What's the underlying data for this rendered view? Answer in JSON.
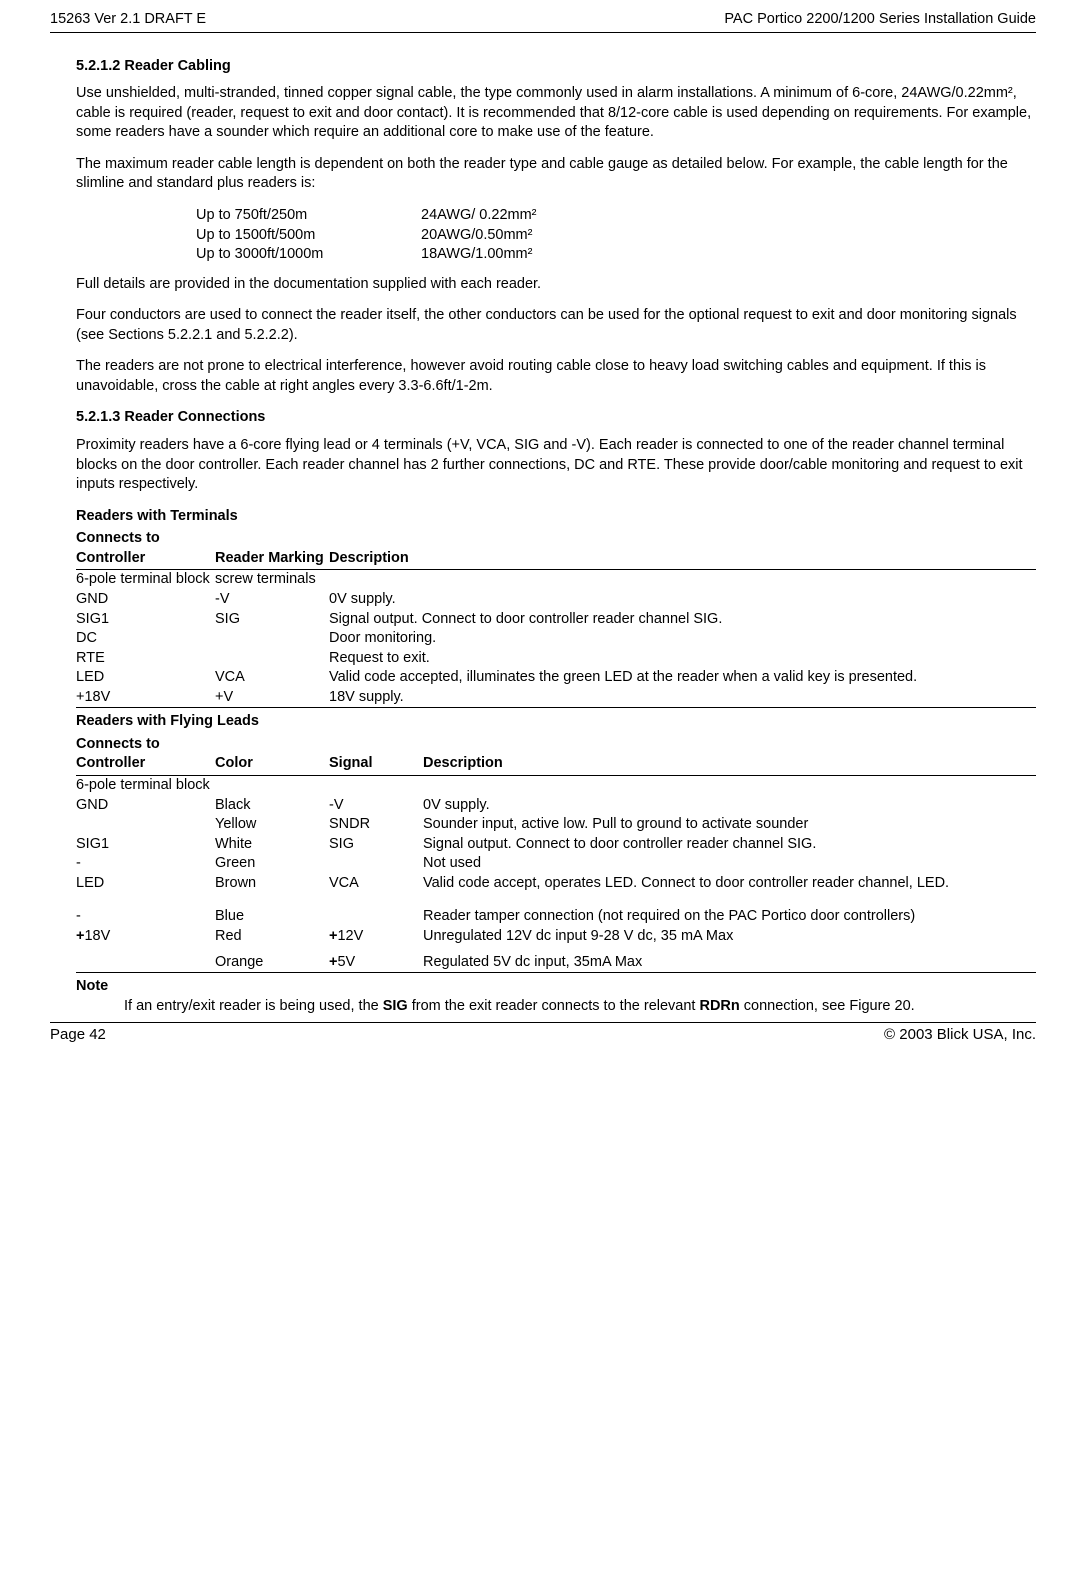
{
  "header": {
    "left": "15263 Ver 2.1 DRAFT E",
    "right": "PAC Portico 2200/1200 Series Installation Guide"
  },
  "s5212": {
    "heading": "5.2.1.2 Reader Cabling",
    "p1": "Use unshielded, multi-stranded, tinned copper signal cable, the type commonly used in alarm installations.  A minimum of 6-core, 24AWG/0.22mm², cable is required (reader, request to exit and door contact).  It is recommended that 8/12-core cable is used depending on requirements.  For example, some readers have a sounder which require an additional core to make use of the feature.",
    "p2": "The maximum reader cable length is dependent on both the reader type and cable gauge as detailed below.  For example, the cable length for the slimline and standard plus readers is:",
    "gauge": [
      {
        "dist": "Up to 750ft/250m",
        "spec": "24AWG/ 0.22mm²"
      },
      {
        "dist": "Up to 1500ft/500m",
        "spec": "20AWG/0.50mm²"
      },
      {
        "dist": "Up to 3000ft/1000m",
        "spec": "18AWG/1.00mm²"
      }
    ],
    "p3": "Full details are provided in the documentation supplied with each reader.",
    "p4": "Four conductors are used to connect the reader itself, the other conductors can be used for the optional request to exit and door monitoring signals (see Sections 5.2.2.1 and 5.2.2.2).",
    "p5": "The readers are not prone to electrical interference, however avoid routing cable close to heavy load switching cables and equipment. If this is unavoidable, cross the cable at right angles every 3.3-6.6ft/1-2m."
  },
  "s5213": {
    "heading": "5.2.1.3 Reader Connections",
    "p1": "Proximity readers have a 6-core flying lead or 4 terminals (+V, VCA, SIG and -V). Each reader is connected to one of the reader channel terminal blocks on the door controller. Each reader channel has 2 further connections, DC and RTE. These provide door/cable monitoring and request to exit inputs respectively.",
    "terminals": {
      "title": "Readers with Terminals",
      "head": [
        "Connects to Controller",
        "Reader Marking",
        "Description"
      ],
      "rows": [
        {
          "c": "6-pole terminal block",
          "m": "screw terminals",
          "d": ""
        },
        {
          "c": "GND",
          "m": "-V",
          "d": "0V supply."
        },
        {
          "c": "SIG1",
          "m": "SIG",
          "d": "Signal output.  Connect to door controller reader channel SIG."
        },
        {
          "c": "DC",
          "m": "",
          "d": "Door monitoring."
        },
        {
          "c": "RTE",
          "m": "",
          "d": "Request to exit."
        },
        {
          "c": "LED",
          "m": "VCA",
          "d": "Valid code accepted, illuminates the green LED at the reader when a valid key is presented."
        },
        {
          "c": "+18V",
          "m": "+V",
          "d": "18V supply."
        }
      ]
    },
    "flying": {
      "title": "Readers with Flying Leads",
      "head": [
        "Connects to Controller",
        "Color",
        "Signal",
        "Description"
      ],
      "rows": [
        {
          "c": "6-pole terminal block",
          "col": "",
          "s": "",
          "d": ""
        },
        {
          "c": "GND",
          "col": "Black",
          "s": "-V",
          "d": "0V supply."
        },
        {
          "c": "",
          "col": "Yellow",
          "s": "SNDR",
          "d": "Sounder input, active low.  Pull to ground to activate sounder"
        },
        {
          "c": "SIG1",
          "col": "White",
          "s": "SIG",
          "d": "Signal output.  Connect to door controller reader channel SIG."
        },
        {
          "c": "-",
          "col": "Green",
          "s": "",
          "d": "Not used"
        },
        {
          "c": "LED",
          "col": "Brown",
          "s": "VCA",
          "d": "Valid code accept, operates LED.  Connect to door controller reader channel, LED."
        },
        {
          "c": "",
          "col": "",
          "s": "",
          "d": "",
          "spacer": true
        },
        {
          "c": "-",
          "col": "Blue",
          "s": "",
          "d": "Reader tamper connection (not required on the PAC Portico door controllers)"
        },
        {
          "c_pre": "+",
          "c": "18V",
          "col": "Red",
          "s_pre": "+",
          "s": "12V",
          "d": "Unregulated 12V dc input 9-28 V dc, 35 mA Max"
        },
        {
          "c": "",
          "col": "Orange",
          "s_pre": "+",
          "s": "5V",
          "d": "Regulated 5V dc input, 35mA Max",
          "gap": true
        }
      ]
    },
    "note": {
      "label": "Note",
      "body_pre": "If an entry/exit reader is being used, the ",
      "bold1": "SIG",
      "body_mid": " from the exit reader connects to the relevant ",
      "bold2": "RDRn",
      "body_post": " connection, see Figure 20."
    }
  },
  "footer": {
    "left": "Page 42",
    "right": "© 2003  Blick USA, Inc."
  }
}
